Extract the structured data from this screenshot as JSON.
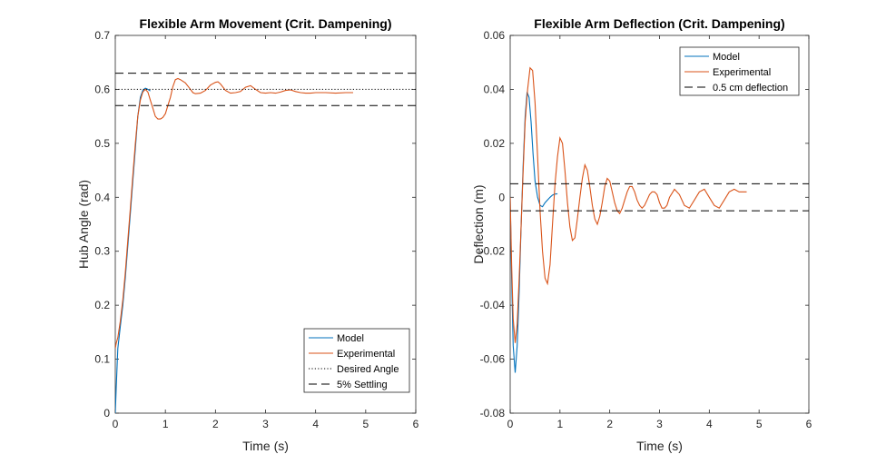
{
  "chart_data": [
    {
      "type": "line",
      "title": "Flexible Arm Movement (Crit. Dampening)",
      "xlabel": "Time (s)",
      "ylabel": "Hub Angle (rad)",
      "xlim": [
        0,
        6
      ],
      "ylim": [
        0,
        0.7
      ],
      "xticks": [
        0,
        1,
        2,
        3,
        4,
        5,
        6
      ],
      "xtick_labels": [
        "0",
        "1",
        "2",
        "3",
        "4",
        "5",
        "6"
      ],
      "yticks": [
        0,
        0.1,
        0.2,
        0.3,
        0.4,
        0.5,
        0.6,
        0.7
      ],
      "ytick_labels": [
        "0",
        "0.1",
        "0.2",
        "0.3",
        "0.4",
        "0.5",
        "0.6",
        "0.7"
      ],
      "legend_position": "bottom-right",
      "series": [
        {
          "name": "Model",
          "color": "#0072BD",
          "style": "solid",
          "x": [
            0,
            0.02,
            0.05,
            0.1,
            0.15,
            0.2,
            0.25,
            0.3,
            0.35,
            0.4,
            0.45,
            0.5,
            0.55,
            0.6,
            0.65,
            0.7
          ],
          "y": [
            0,
            0.05,
            0.12,
            0.16,
            0.2,
            0.25,
            0.31,
            0.37,
            0.43,
            0.49,
            0.55,
            0.585,
            0.598,
            0.602,
            0.6,
            0.597
          ]
        },
        {
          "name": "Experimental",
          "color": "#D95319",
          "style": "solid",
          "x": [
            0,
            0.02,
            0.05,
            0.1,
            0.15,
            0.2,
            0.25,
            0.3,
            0.35,
            0.4,
            0.45,
            0.5,
            0.55,
            0.6,
            0.65,
            0.7,
            0.75,
            0.8,
            0.85,
            0.9,
            0.95,
            1.0,
            1.05,
            1.1,
            1.15,
            1.2,
            1.25,
            1.3,
            1.4,
            1.5,
            1.55,
            1.6,
            1.7,
            1.8,
            1.9,
            2.0,
            2.05,
            2.1,
            2.2,
            2.3,
            2.4,
            2.5,
            2.6,
            2.7,
            2.8,
            2.9,
            3.0,
            3.1,
            3.2,
            3.3,
            3.4,
            3.5,
            3.6,
            3.7,
            3.8,
            3.9,
            4.0,
            4.2,
            4.4,
            4.6,
            4.75
          ],
          "y": [
            0.12,
            0.13,
            0.14,
            0.17,
            0.21,
            0.26,
            0.32,
            0.38,
            0.44,
            0.5,
            0.55,
            0.58,
            0.595,
            0.6,
            0.595,
            0.58,
            0.565,
            0.55,
            0.545,
            0.545,
            0.548,
            0.555,
            0.57,
            0.585,
            0.605,
            0.618,
            0.62,
            0.618,
            0.612,
            0.6,
            0.594,
            0.592,
            0.593,
            0.598,
            0.608,
            0.613,
            0.614,
            0.61,
            0.598,
            0.593,
            0.594,
            0.596,
            0.604,
            0.607,
            0.6,
            0.594,
            0.593,
            0.594,
            0.593,
            0.595,
            0.598,
            0.599,
            0.596,
            0.594,
            0.593,
            0.593,
            0.594,
            0.594,
            0.593,
            0.594,
            0.594
          ]
        },
        {
          "name": "Desired Angle",
          "color": "#000000",
          "style": "dotted",
          "x": [
            0,
            6
          ],
          "y": [
            0.6,
            0.6
          ]
        },
        {
          "name": "5% Settling",
          "color": "#000000",
          "style": "dashed",
          "x": [
            0,
            6
          ],
          "y": [
            0.63,
            0.63
          ]
        },
        {
          "name": "",
          "color": "#000000",
          "style": "dashed",
          "legend": false,
          "x": [
            0,
            6
          ],
          "y": [
            0.57,
            0.57
          ]
        }
      ]
    },
    {
      "type": "line",
      "title": "Flexible Arm Deflection (Crit. Dampening)",
      "xlabel": "Time (s)",
      "ylabel": "Deflection (m)",
      "xlim": [
        0,
        6
      ],
      "ylim": [
        -0.08,
        0.06
      ],
      "xticks": [
        0,
        1,
        2,
        3,
        4,
        5,
        6
      ],
      "xtick_labels": [
        "0",
        "1",
        "2",
        "3",
        "4",
        "5",
        "6"
      ],
      "yticks": [
        -0.08,
        -0.06,
        -0.04,
        -0.02,
        0,
        0.02,
        0.04,
        0.06
      ],
      "ytick_labels": [
        "-0.08",
        "-0.06",
        "-0.04",
        "-0.02",
        "0",
        "0.02",
        "0.04",
        "0.06"
      ],
      "legend_position": "top-right",
      "series": [
        {
          "name": "Model",
          "color": "#0072BD",
          "style": "solid",
          "x": [
            0,
            0.03,
            0.06,
            0.1,
            0.14,
            0.18,
            0.22,
            0.26,
            0.3,
            0.34,
            0.38,
            0.42,
            0.46,
            0.5,
            0.55,
            0.6,
            0.65,
            0.7,
            0.75,
            0.8,
            0.85,
            0.9,
            0.95
          ],
          "y": [
            0,
            -0.03,
            -0.055,
            -0.065,
            -0.055,
            -0.035,
            -0.01,
            0.012,
            0.03,
            0.039,
            0.037,
            0.028,
            0.016,
            0.006,
            0.0,
            -0.003,
            -0.0035,
            -0.002,
            -0.001,
            0.0,
            0.0008,
            0.0012,
            0.0013
          ]
        },
        {
          "name": "Experimental",
          "color": "#D95319",
          "style": "solid",
          "x": [
            0,
            0.03,
            0.06,
            0.1,
            0.14,
            0.18,
            0.22,
            0.26,
            0.3,
            0.35,
            0.4,
            0.45,
            0.5,
            0.55,
            0.6,
            0.65,
            0.7,
            0.75,
            0.8,
            0.85,
            0.9,
            0.95,
            1.0,
            1.05,
            1.1,
            1.15,
            1.2,
            1.25,
            1.3,
            1.35,
            1.4,
            1.45,
            1.5,
            1.55,
            1.6,
            1.65,
            1.7,
            1.75,
            1.8,
            1.85,
            1.9,
            1.95,
            2.0,
            2.05,
            2.1,
            2.15,
            2.2,
            2.25,
            2.3,
            2.35,
            2.4,
            2.45,
            2.5,
            2.55,
            2.6,
            2.65,
            2.7,
            2.75,
            2.8,
            2.85,
            2.9,
            2.95,
            3.0,
            3.05,
            3.1,
            3.15,
            3.2,
            3.3,
            3.4,
            3.5,
            3.6,
            3.7,
            3.8,
            3.9,
            4.0,
            4.1,
            4.2,
            4.3,
            4.4,
            4.5,
            4.6,
            4.75
          ],
          "y": [
            0,
            -0.025,
            -0.045,
            -0.054,
            -0.047,
            -0.03,
            -0.01,
            0.01,
            0.028,
            0.04,
            0.048,
            0.047,
            0.035,
            0.015,
            -0.005,
            -0.02,
            -0.03,
            -0.032,
            -0.025,
            -0.01,
            0.005,
            0.015,
            0.022,
            0.02,
            0.01,
            -0.002,
            -0.011,
            -0.016,
            -0.015,
            -0.008,
            0.0,
            0.007,
            0.012,
            0.01,
            0.004,
            -0.003,
            -0.008,
            -0.01,
            -0.007,
            -0.002,
            0.004,
            0.007,
            0.006,
            0.002,
            -0.002,
            -0.005,
            -0.006,
            -0.004,
            -0.001,
            0.002,
            0.004,
            0.004,
            0.002,
            -0.001,
            -0.003,
            -0.004,
            -0.003,
            -0.001,
            0.001,
            0.002,
            0.002,
            0.001,
            -0.002,
            -0.004,
            -0.004,
            -0.003,
            0.0,
            0.003,
            0.001,
            -0.003,
            -0.004,
            -0.001,
            0.002,
            0.003,
            0.0,
            -0.003,
            -0.004,
            -0.001,
            0.002,
            0.003,
            0.002,
            0.002
          ]
        },
        {
          "name": "0.5 cm deflection",
          "color": "#000000",
          "style": "dashed",
          "x": [
            0,
            6
          ],
          "y": [
            0.005,
            0.005
          ]
        },
        {
          "name": "",
          "color": "#000000",
          "style": "dashed",
          "legend": false,
          "x": [
            0,
            6
          ],
          "y": [
            -0.005,
            -0.005
          ]
        }
      ]
    }
  ]
}
